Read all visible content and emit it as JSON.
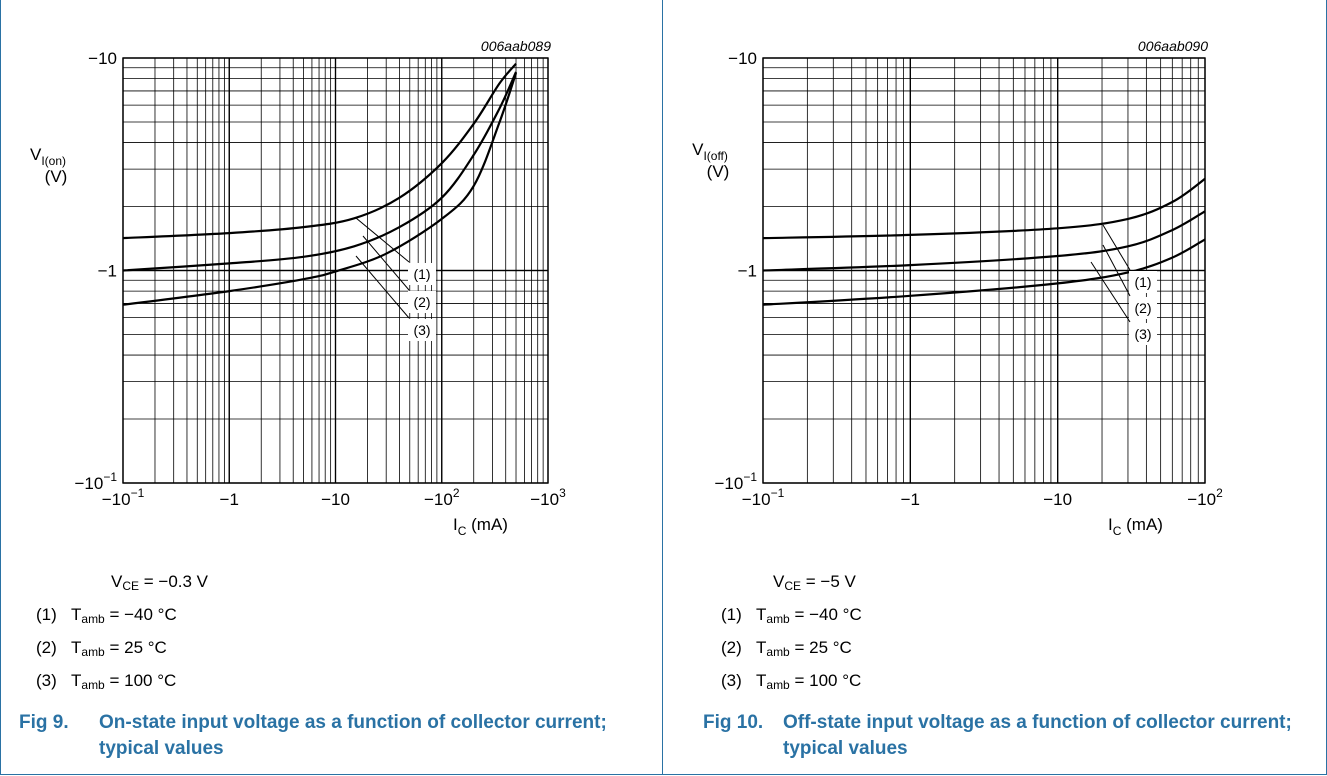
{
  "panels": [
    {
      "code": "006aab089",
      "ylabel_main": "V",
      "ylabel_sub": "I(on)",
      "ylabel_unit": "(V)",
      "xlabel_main": "I",
      "xlabel_sub": "C",
      "xlabel_unit": " (mA)",
      "vce_main": "V",
      "vce_sub": "CE",
      "vce_value": " = −0.3 V",
      "conditions": [
        {
          "num": "(1)",
          "main": "T",
          "sub": "amb",
          "value": " = −40 °C"
        },
        {
          "num": "(2)",
          "main": "T",
          "sub": "amb",
          "value": " = 25 °C"
        },
        {
          "num": "(3)",
          "main": "T",
          "sub": "amb",
          "value": " = 100 °C"
        }
      ],
      "caption_num": "Fig 9.",
      "caption_text": "On-state input voltage as a function of collector current; typical values"
    },
    {
      "code": "006aab090",
      "ylabel_main": "V",
      "ylabel_sub": "I(off)",
      "ylabel_unit": "(V)",
      "xlabel_main": "I",
      "xlabel_sub": "C",
      "xlabel_unit": " (mA)",
      "vce_main": "V",
      "vce_sub": "CE",
      "vce_value": " = −5 V",
      "conditions": [
        {
          "num": "(1)",
          "main": "T",
          "sub": "amb",
          "value": " = −40 °C"
        },
        {
          "num": "(2)",
          "main": "T",
          "sub": "amb",
          "value": " = 25 °C"
        },
        {
          "num": "(3)",
          "main": "T",
          "sub": "amb",
          "value": " = 100 °C"
        }
      ],
      "caption_num": "Fig 10.",
      "caption_text": "Off-state input voltage as a function of collector current; typical values"
    }
  ],
  "chart_data": [
    {
      "type": "line",
      "x_scale": "log",
      "y_scale": "log",
      "xlim": [
        -0.1,
        -1000
      ],
      "ylim": [
        -0.1,
        -10
      ],
      "x_ticks": [
        {
          "value": -0.1,
          "base": "−10",
          "exp": "−1"
        },
        {
          "value": -1,
          "base": "−1",
          "exp": ""
        },
        {
          "value": -10,
          "base": "−10",
          "exp": ""
        },
        {
          "value": -100,
          "base": "−10",
          "exp": "2"
        },
        {
          "value": -1000,
          "base": "−10",
          "exp": "3"
        }
      ],
      "y_ticks": [
        {
          "value": -10,
          "base": "−10",
          "exp": ""
        },
        {
          "value": -1,
          "base": "−1",
          "exp": ""
        },
        {
          "value": -0.1,
          "base": "−10",
          "exp": "−1"
        }
      ],
      "grid": true,
      "series": [
        {
          "name": "(1)",
          "x": [
            -0.1,
            -1,
            -5,
            -15,
            -40,
            -100,
            -200,
            -350,
            -500
          ],
          "y": [
            -1.42,
            -1.5,
            -1.6,
            -1.76,
            -2.2,
            -3.2,
            -4.9,
            -7.6,
            -9.4
          ]
        },
        {
          "name": "(2)",
          "x": [
            -0.1,
            -1,
            -5,
            -15,
            -40,
            -100,
            -200,
            -350,
            -500
          ],
          "y": [
            -1.0,
            -1.08,
            -1.16,
            -1.3,
            -1.6,
            -2.2,
            -3.5,
            -5.8,
            -8.6
          ]
        },
        {
          "name": "(3)",
          "x": [
            -0.1,
            -1,
            -5,
            -10,
            -30,
            -100,
            -200,
            -350,
            -500
          ],
          "y": [
            -0.69,
            -0.8,
            -0.91,
            -0.99,
            -1.2,
            -1.75,
            -2.5,
            -5.0,
            -8.5
          ]
        }
      ],
      "callouts": [
        "(1)",
        "(2)",
        "(3)"
      ]
    },
    {
      "type": "line",
      "x_scale": "log",
      "y_scale": "log",
      "xlim": [
        -0.1,
        -100
      ],
      "ylim": [
        -0.1,
        -10
      ],
      "x_ticks": [
        {
          "value": -0.1,
          "base": "−10",
          "exp": "−1"
        },
        {
          "value": -1,
          "base": "−1",
          "exp": ""
        },
        {
          "value": -10,
          "base": "−10",
          "exp": ""
        },
        {
          "value": -100,
          "base": "−10",
          "exp": "2"
        }
      ],
      "y_ticks": [
        {
          "value": -10,
          "base": "−10",
          "exp": ""
        },
        {
          "value": -1,
          "base": "−1",
          "exp": ""
        },
        {
          "value": -0.1,
          "base": "−10",
          "exp": "−1"
        }
      ],
      "grid": true,
      "series": [
        {
          "name": "(1)",
          "x": [
            -0.1,
            -1,
            -10,
            -30,
            -60,
            -100
          ],
          "y": [
            -1.42,
            -1.47,
            -1.58,
            -1.75,
            -2.1,
            -2.7
          ]
        },
        {
          "name": "(2)",
          "x": [
            -0.1,
            -1,
            -10,
            -30,
            -60,
            -100
          ],
          "y": [
            -1.0,
            -1.06,
            -1.17,
            -1.3,
            -1.55,
            -1.9
          ]
        },
        {
          "name": "(3)",
          "x": [
            -0.1,
            -1,
            -10,
            -30,
            -60,
            -100
          ],
          "y": [
            -0.69,
            -0.76,
            -0.87,
            -0.98,
            -1.15,
            -1.4
          ]
        }
      ],
      "callouts": [
        "(1)",
        "(2)",
        "(3)"
      ]
    }
  ]
}
